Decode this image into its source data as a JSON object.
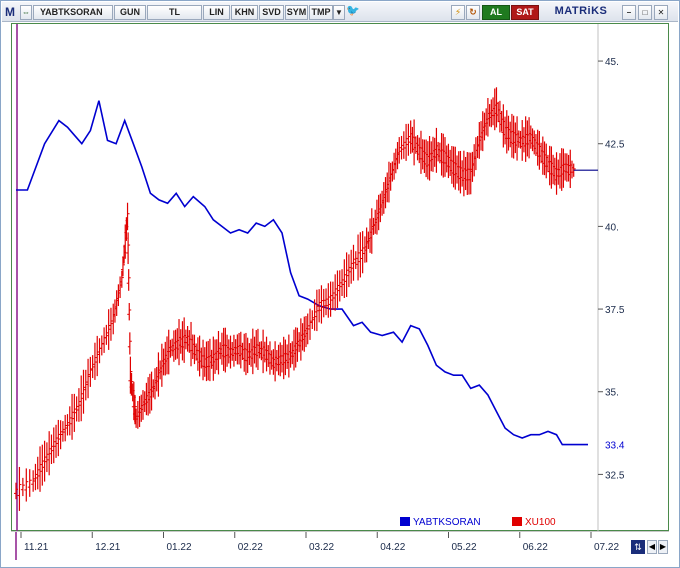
{
  "toolbar": {
    "app_letter": "M",
    "symbol": "YABTKSORAN",
    "period": "GUN",
    "currency": "TL",
    "scale": "LIN",
    "khn": "KHN",
    "svd": "SVD",
    "sym": "SYM",
    "tmp": "TMP",
    "buy": "AL",
    "sell": "SAT",
    "brand": "MATRiKS",
    "colors": {
      "buy": "#1f7a1f",
      "sell": "#b01818",
      "brand": "#1a2d7a"
    }
  },
  "chart_data": {
    "type": "line",
    "x_tick_labels": [
      "11.21",
      "12.21",
      "01.22",
      "02.22",
      "03.22",
      "04.22",
      "05.22",
      "06.22",
      "07.22"
    ],
    "y_tick_labels": [
      "45.",
      "42.5",
      "40.",
      "37.5",
      "35.",
      "32.5"
    ],
    "y_ticks": [
      45,
      42.5,
      40,
      37.5,
      35,
      32.5
    ],
    "ylim": [
      31.0,
      46.0
    ],
    "last_value_label": "33.4",
    "last_value": 33.4,
    "legend_position": "bottom-right",
    "series": [
      {
        "name": "YABTKSORAN",
        "color": "#0000d0",
        "style": "line",
        "points": [
          [
            0.0,
            41.1
          ],
          [
            0.02,
            41.1
          ],
          [
            0.05,
            42.5
          ],
          [
            0.075,
            43.2
          ],
          [
            0.09,
            43.0
          ],
          [
            0.1,
            42.8
          ],
          [
            0.115,
            42.5
          ],
          [
            0.13,
            42.9
          ],
          [
            0.145,
            43.8
          ],
          [
            0.16,
            42.6
          ],
          [
            0.175,
            42.5
          ],
          [
            0.19,
            43.2
          ],
          [
            0.205,
            42.5
          ],
          [
            0.22,
            41.8
          ],
          [
            0.235,
            41.0
          ],
          [
            0.25,
            40.8
          ],
          [
            0.265,
            40.7
          ],
          [
            0.28,
            41.0
          ],
          [
            0.295,
            40.6
          ],
          [
            0.31,
            40.9
          ],
          [
            0.33,
            40.6
          ],
          [
            0.345,
            40.2
          ],
          [
            0.36,
            40.0
          ],
          [
            0.375,
            39.8
          ],
          [
            0.39,
            39.9
          ],
          [
            0.405,
            39.8
          ],
          [
            0.42,
            40.1
          ],
          [
            0.435,
            40.0
          ],
          [
            0.45,
            40.2
          ],
          [
            0.465,
            39.8
          ],
          [
            0.48,
            38.6
          ],
          [
            0.495,
            37.9
          ],
          [
            0.51,
            37.8
          ],
          [
            0.53,
            37.6
          ],
          [
            0.55,
            37.5
          ],
          [
            0.57,
            37.5
          ],
          [
            0.59,
            37.0
          ],
          [
            0.605,
            37.1
          ],
          [
            0.62,
            36.8
          ],
          [
            0.64,
            36.7
          ],
          [
            0.66,
            36.8
          ],
          [
            0.675,
            36.5
          ],
          [
            0.69,
            37.0
          ],
          [
            0.705,
            36.9
          ],
          [
            0.72,
            36.4
          ],
          [
            0.735,
            35.8
          ],
          [
            0.75,
            35.6
          ],
          [
            0.765,
            35.5
          ],
          [
            0.78,
            35.5
          ],
          [
            0.795,
            35.1
          ],
          [
            0.81,
            35.2
          ],
          [
            0.825,
            34.9
          ],
          [
            0.84,
            34.4
          ],
          [
            0.855,
            33.9
          ],
          [
            0.87,
            33.7
          ],
          [
            0.885,
            33.6
          ],
          [
            0.9,
            33.7
          ],
          [
            0.915,
            33.7
          ],
          [
            0.93,
            33.8
          ],
          [
            0.945,
            33.7
          ],
          [
            0.955,
            33.4
          ],
          [
            1.0,
            33.4
          ]
        ]
      },
      {
        "name": "XU100",
        "color": "#e00000",
        "style": "ohlc",
        "points": [
          [
            0.0,
            32.0
          ],
          [
            0.03,
            32.3
          ],
          [
            0.05,
            32.9
          ],
          [
            0.07,
            33.5
          ],
          [
            0.09,
            34.0
          ],
          [
            0.11,
            34.6
          ],
          [
            0.13,
            35.6
          ],
          [
            0.15,
            36.4
          ],
          [
            0.17,
            37.2
          ],
          [
            0.185,
            38.4
          ],
          [
            0.195,
            40.3
          ],
          [
            0.2,
            35.5
          ],
          [
            0.21,
            34.2
          ],
          [
            0.225,
            34.7
          ],
          [
            0.24,
            35.1
          ],
          [
            0.255,
            35.8
          ],
          [
            0.27,
            36.3
          ],
          [
            0.285,
            36.5
          ],
          [
            0.3,
            36.6
          ],
          [
            0.315,
            36.2
          ],
          [
            0.33,
            35.9
          ],
          [
            0.345,
            36.0
          ],
          [
            0.36,
            36.3
          ],
          [
            0.375,
            36.2
          ],
          [
            0.39,
            36.3
          ],
          [
            0.405,
            36.1
          ],
          [
            0.42,
            36.3
          ],
          [
            0.435,
            36.2
          ],
          [
            0.45,
            35.9
          ],
          [
            0.465,
            36.0
          ],
          [
            0.48,
            36.1
          ],
          [
            0.495,
            36.5
          ],
          [
            0.51,
            36.9
          ],
          [
            0.53,
            37.6
          ],
          [
            0.55,
            37.8
          ],
          [
            0.57,
            38.3
          ],
          [
            0.59,
            38.9
          ],
          [
            0.61,
            39.3
          ],
          [
            0.625,
            40.0
          ],
          [
            0.64,
            40.7
          ],
          [
            0.655,
            41.5
          ],
          [
            0.67,
            42.3
          ],
          [
            0.69,
            42.7
          ],
          [
            0.705,
            42.3
          ],
          [
            0.72,
            42.0
          ],
          [
            0.735,
            42.3
          ],
          [
            0.75,
            42.1
          ],
          [
            0.765,
            41.8
          ],
          [
            0.78,
            41.6
          ],
          [
            0.795,
            41.6
          ],
          [
            0.81,
            42.6
          ],
          [
            0.825,
            43.3
          ],
          [
            0.84,
            43.6
          ],
          [
            0.855,
            42.9
          ],
          [
            0.87,
            42.7
          ],
          [
            0.885,
            42.6
          ],
          [
            0.9,
            42.7
          ],
          [
            0.915,
            42.3
          ],
          [
            0.93,
            41.9
          ],
          [
            0.945,
            41.6
          ],
          [
            0.96,
            41.8
          ],
          [
            0.975,
            41.7
          ]
        ]
      }
    ]
  }
}
